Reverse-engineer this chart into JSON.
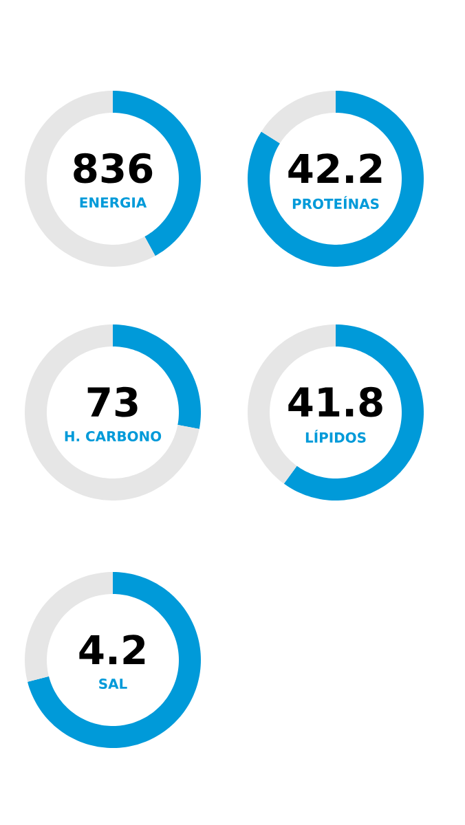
{
  "chart_data": [
    {
      "type": "donut",
      "title": "ENERGIA",
      "categories": [
        null,
        null
      ],
      "values": [
        42,
        58
      ],
      "colors": [
        "#009ad9",
        "#e6e6e6"
      ],
      "annotations": [
        "836"
      ]
    },
    {
      "type": "donut",
      "title": "PROTEÍNAS",
      "categories": [
        null,
        null
      ],
      "values": [
        84,
        16
      ],
      "colors": [
        "#009ad9",
        "#e6e6e6"
      ],
      "annotations": [
        "42.2"
      ]
    },
    {
      "type": "donut",
      "title": "H. CARBONO",
      "categories": [
        null,
        null
      ],
      "values": [
        28,
        72
      ],
      "colors": [
        "#009ad9",
        "#e6e6e6"
      ],
      "annotations": [
        "73"
      ]
    },
    {
      "type": "donut",
      "title": "LÍPIDOS",
      "categories": [
        null,
        null
      ],
      "values": [
        60,
        40
      ],
      "colors": [
        "#009ad9",
        "#e6e6e6"
      ],
      "annotations": [
        "41.8"
      ]
    },
    {
      "type": "donut",
      "title": "SAL",
      "categories": [
        null,
        null
      ],
      "values": [
        71,
        29
      ],
      "colors": [
        "#009ad9",
        "#e6e6e6"
      ],
      "annotations": [
        "4.2"
      ]
    }
  ]
}
